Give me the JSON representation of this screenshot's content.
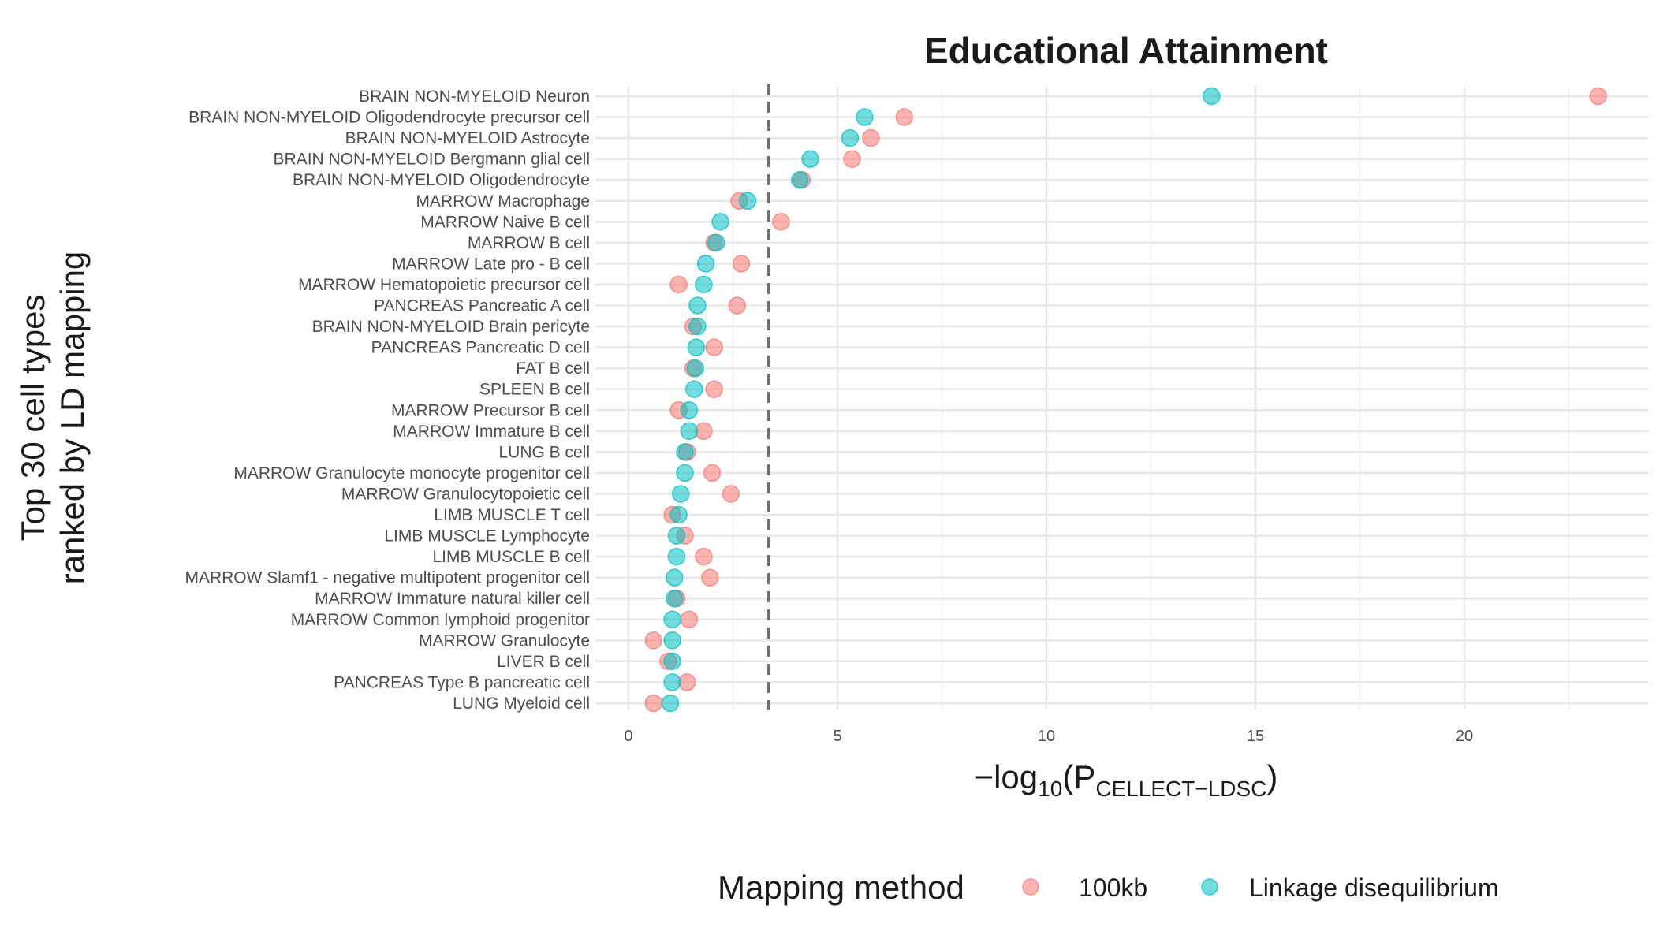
{
  "chart_data": {
    "type": "scatter",
    "title": "Educational Attainment",
    "ylabel_lines": [
      "Top 30 cell types",
      "ranked by LD mapping"
    ],
    "xlabel": {
      "prefix": "−log",
      "sub1": "10",
      "mid": "(P",
      "sub2": "CELLECT−LDSC",
      "suffix": ")"
    },
    "xlim": [
      -0.3,
      24.3
    ],
    "xticks": [
      0,
      5,
      10,
      15,
      20
    ],
    "xtick_labels": [
      "0",
      "5",
      "10",
      "15",
      "20"
    ],
    "grid": true,
    "threshold_x": 3.35,
    "categories": [
      "BRAIN NON-MYELOID Neuron",
      "BRAIN NON-MYELOID Oligodendrocyte precursor cell",
      "BRAIN NON-MYELOID Astrocyte",
      "BRAIN NON-MYELOID Bergmann glial cell",
      "BRAIN NON-MYELOID Oligodendrocyte",
      "MARROW Macrophage",
      "MARROW Naive B cell",
      "MARROW B cell",
      "MARROW Late pro - B cell",
      "MARROW Hematopoietic precursor cell",
      "PANCREAS Pancreatic A cell",
      "BRAIN NON-MYELOID Brain pericyte",
      "PANCREAS Pancreatic D cell",
      "FAT B cell",
      "SPLEEN B cell",
      "MARROW Precursor B cell",
      "MARROW Immature B cell",
      "LUNG B cell",
      "MARROW Granulocyte monocyte progenitor cell",
      "MARROW Granulocytopoietic cell",
      "LIMB MUSCLE T cell",
      "LIMB MUSCLE Lymphocyte",
      "LIMB MUSCLE B cell",
      "MARROW Slamf1 - negative multipotent progenitor cell",
      "MARROW Immature natural killer cell",
      "MARROW Common lymphoid progenitor",
      "MARROW Granulocyte",
      "LIVER B cell",
      "PANCREAS Type B pancreatic cell",
      "LUNG Myeloid cell"
    ],
    "series": [
      {
        "name": "100kb",
        "color": "#F8766D",
        "values": [
          23.2,
          6.6,
          5.8,
          5.35,
          4.15,
          2.65,
          3.65,
          2.05,
          2.7,
          1.2,
          2.6,
          1.55,
          2.05,
          1.55,
          2.05,
          1.2,
          1.8,
          1.4,
          2.0,
          2.45,
          1.05,
          1.35,
          1.8,
          1.95,
          1.15,
          1.45,
          0.6,
          0.95,
          1.4,
          0.6
        ]
      },
      {
        "name": "Linkage disequilibrium",
        "color": "#00BFC4",
        "values": [
          13.95,
          5.65,
          5.3,
          4.35,
          4.1,
          2.85,
          2.2,
          2.1,
          1.85,
          1.8,
          1.65,
          1.65,
          1.62,
          1.6,
          1.57,
          1.45,
          1.45,
          1.35,
          1.35,
          1.25,
          1.2,
          1.15,
          1.15,
          1.1,
          1.1,
          1.05,
          1.05,
          1.05,
          1.05,
          1.0
        ]
      }
    ],
    "legend": {
      "title": "Mapping method",
      "position": "bottom",
      "entries": [
        "100kb",
        "Linkage disequilibrium"
      ]
    }
  }
}
